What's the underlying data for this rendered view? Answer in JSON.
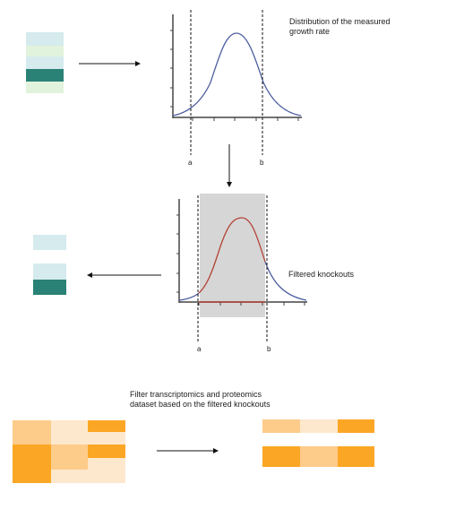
{
  "labels": {
    "distribution": "Distribution of the measured growth rate",
    "filtered_knockouts": "Filtered knockouts",
    "filter_dataset": "Filter transcriptomics and proteomics dataset based on the filtered knockouts"
  },
  "plot_top": {
    "threshold_a": "a",
    "threshold_b": "b"
  },
  "plot_bottom": {
    "threshold_a": "a",
    "threshold_b": "b"
  },
  "colors": {
    "teal_dark": "#2a8276",
    "teal_light": "#d5ebee",
    "green_light": "#e2f3dd",
    "curve_blue": "#4e5fa0",
    "curve_red": "#b34235",
    "shade_gray": "#d6d6d6",
    "orange_dark": "#fca625",
    "orange_mid": "#fdcc8a",
    "orange_light": "#fde8cd"
  }
}
